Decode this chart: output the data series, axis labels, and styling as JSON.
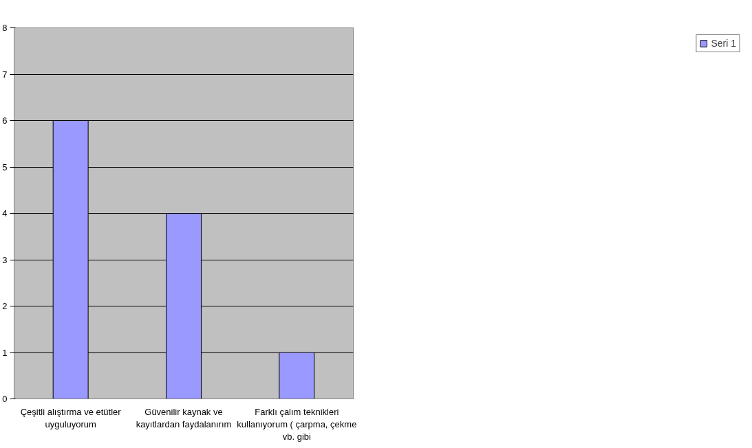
{
  "chart_data": {
    "type": "bar",
    "categories": [
      "Çeşitli alıştırma ve etütler uyguluyorum",
      "Güvenilir kaynak ve kayıtlardan faydalanırım",
      "Farklı çalım teknikleri kullanıyorum ( çarpma, çekme vb. gibi"
    ],
    "series": [
      {
        "name": "Seri 1",
        "color": "#9999ff",
        "values": [
          6,
          4,
          1
        ]
      }
    ],
    "ylim": [
      0,
      8
    ],
    "yticks": [
      0,
      1,
      2,
      3,
      4,
      5,
      6,
      7,
      8
    ],
    "grid": "y",
    "legend": "right"
  }
}
